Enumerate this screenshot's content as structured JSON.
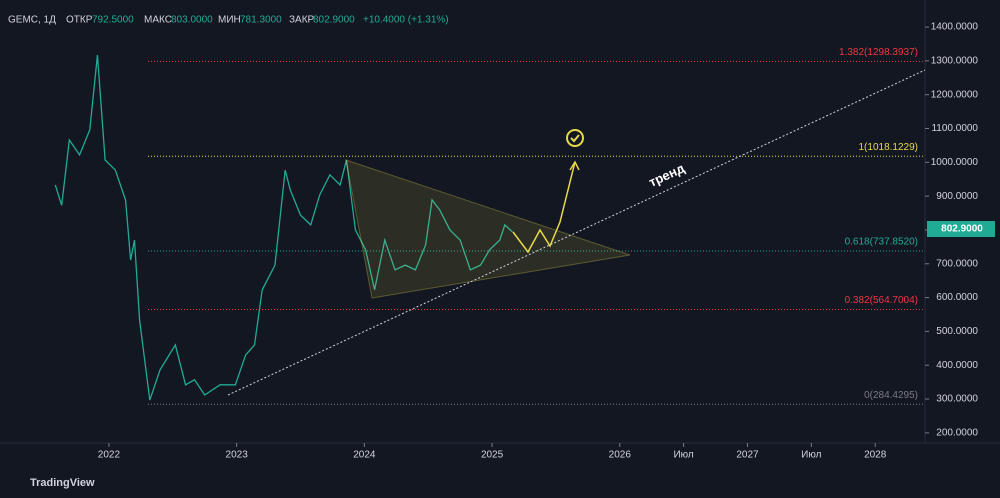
{
  "chart_data": {
    "type": "line",
    "header": {
      "symbol": "GEMC, 1Д",
      "open_label": "ОТКР",
      "open": "792.5000",
      "high_label": "МАКС",
      "high": "803.0000",
      "low_label": "МИН",
      "low": "781.3000",
      "close_label": "ЗАКР",
      "close": "802.9000",
      "change": "+10.4000 (+1.31%)"
    },
    "brand": "TradingView",
    "annotation": "тренд",
    "last_price": {
      "value": 802.9,
      "label": "802.9000",
      "color": "#22ab94"
    },
    "x": [
      2021.58,
      2021.63,
      2021.69,
      2021.77,
      2021.85,
      2021.91,
      2021.97,
      2022.05,
      2022.13,
      2022.17,
      2022.2,
      2022.24,
      2022.28,
      2022.32,
      2022.4,
      2022.52,
      2022.6,
      2022.67,
      2022.75,
      2022.87,
      2022.99,
      2023.07,
      2023.14,
      2023.2,
      2023.3,
      2023.38,
      2023.42,
      2023.5,
      2023.58,
      2023.65,
      2023.73,
      2023.81,
      2023.86,
      2023.93,
      2024.01,
      2024.08,
      2024.16,
      2024.24,
      2024.32,
      2024.4,
      2024.48,
      2024.53,
      2024.59,
      2024.67,
      2024.75,
      2024.83,
      2024.91,
      2024.98,
      2025.06,
      2025.1,
      2025.16
    ],
    "series": [
      {
        "name": "GEMC",
        "color": "#22ab94",
        "values": [
          933,
          873,
          1066,
          1022,
          1096,
          1317,
          1007,
          977,
          889,
          711,
          770,
          534,
          415,
          297,
          386,
          460,
          342,
          357,
          312,
          342,
          342,
          430,
          460,
          623,
          696,
          977,
          918,
          844,
          815,
          903,
          963,
          933,
          1007,
          800,
          741,
          623,
          770,
          682,
          696,
          682,
          756,
          889,
          859,
          800,
          770,
          682,
          696,
          741,
          770,
          815,
          794
        ]
      }
    ],
    "levels": [
      {
        "label": "1.382(1298.3937)",
        "value": 1298.3937,
        "color": "#f23645"
      },
      {
        "label": "1(1018.1229)",
        "value": 1018.1229,
        "color": "#e8d94a"
      },
      {
        "label": "0.618(737.8520)",
        "value": 737.852,
        "color": "#22ab94"
      },
      {
        "label": "0.382(564.7004)",
        "value": 564.7004,
        "color": "#f23645"
      },
      {
        "label": "0(284.4295)",
        "value": 284.4295,
        "color": "#787b86"
      }
    ],
    "xlim": [
      2021.147,
      2028.39
    ],
    "xticks": [
      2022,
      2023,
      2024,
      2025,
      2026,
      {
        "value": 2026.5,
        "label": "Июл"
      },
      2027,
      {
        "value": 2027.5,
        "label": "Июл"
      },
      2028
    ],
    "ylim": [
      170,
      1480
    ],
    "yticks": [
      {
        "value": 200,
        "label": "200.0000"
      },
      {
        "value": 300,
        "label": "300.0000"
      },
      {
        "value": 400,
        "label": "400.0000"
      },
      {
        "value": 500,
        "label": "500.0000"
      },
      {
        "value": 600,
        "label": "600.0000"
      },
      {
        "value": 700,
        "label": "700.0000"
      },
      {
        "value": 800,
        "label": "800.0000"
      },
      {
        "value": 900,
        "label": "900.0000"
      },
      {
        "value": 1000,
        "label": "1000.0000"
      },
      {
        "value": 1100,
        "label": "1100.0000"
      },
      {
        "value": 1200,
        "label": "1200.0000"
      },
      {
        "value": 1300,
        "label": "1300.0000"
      },
      {
        "value": 1400,
        "label": "1400.0000"
      }
    ]
  }
}
